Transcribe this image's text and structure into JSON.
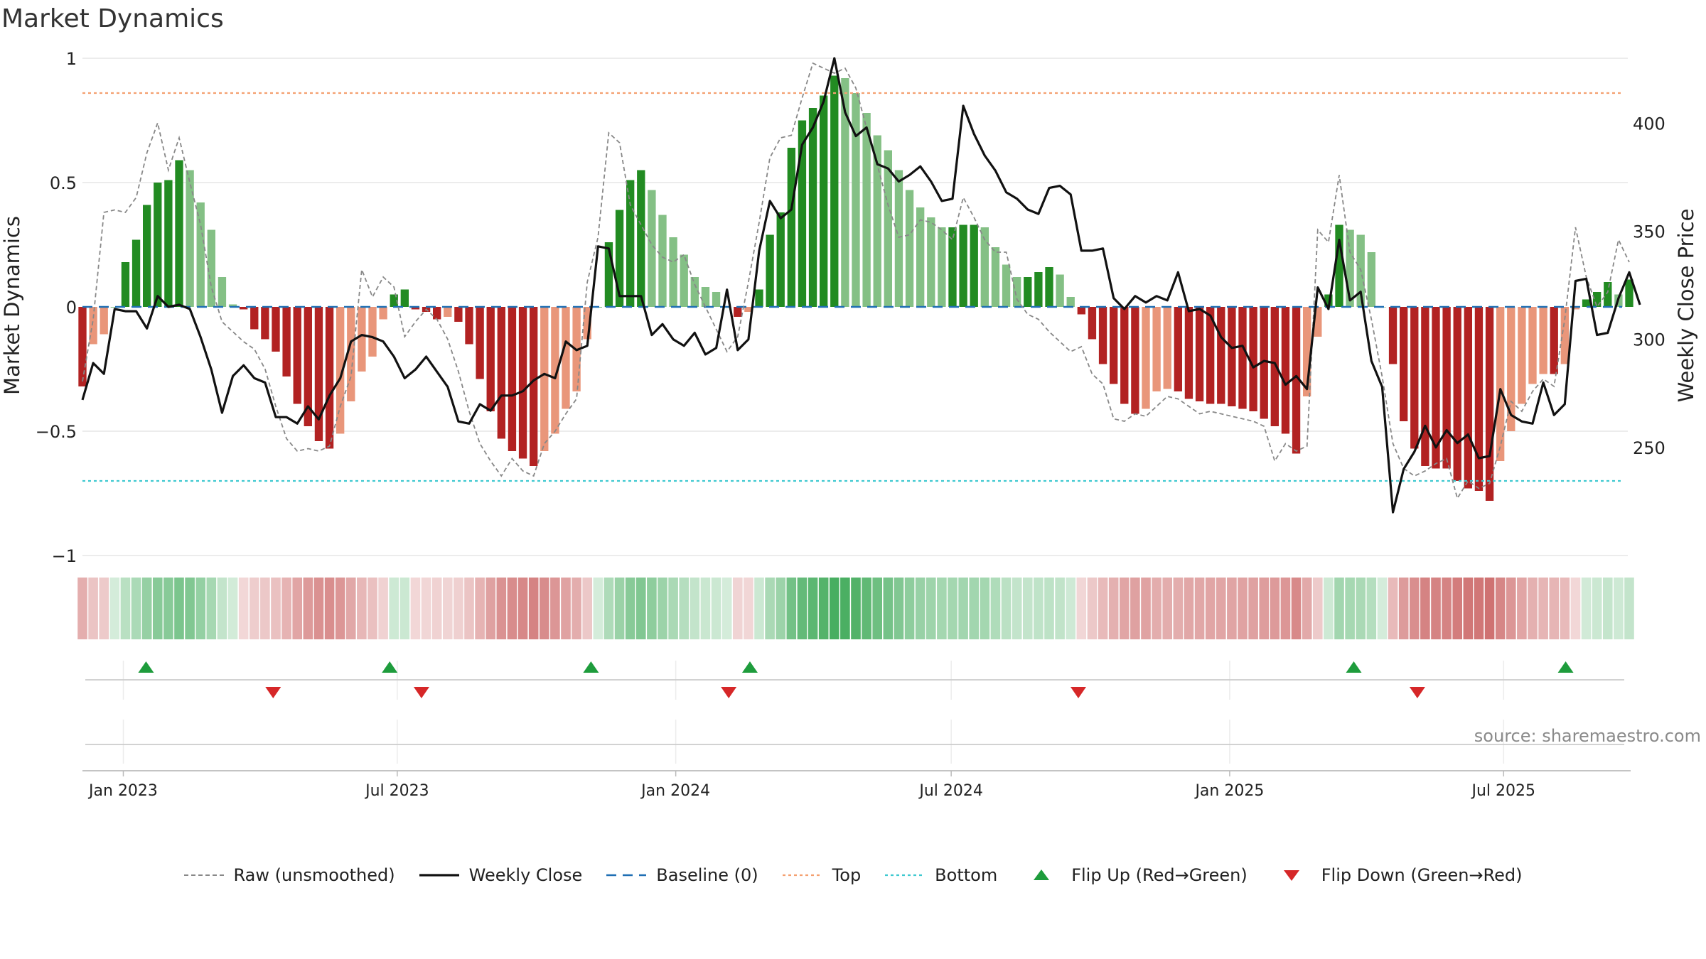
{
  "chart_data": {
    "type": "bar",
    "title": "Market Dynamics",
    "ylabel_left": "Market Dynamics",
    "ylabel_right": "Weekly Close Price",
    "ylim_left": [
      -1,
      1
    ],
    "ylim_right": [
      200,
      430
    ],
    "yticks_left": [
      1,
      0.5,
      0,
      -0.5,
      -1
    ],
    "yticks_left_labels": [
      "1",
      "0.5",
      "0",
      "−0.5",
      "−1"
    ],
    "yticks_right": [
      400,
      350,
      300,
      250
    ],
    "yticks_right_labels": [
      "400",
      "350",
      "300",
      "250"
    ],
    "x_start": "2022-12-05",
    "x_end": "2025-09-22",
    "xticks": [
      "2023-01-01",
      "2023-07-01",
      "2024-01-01",
      "2024-07-01",
      "2025-01-01",
      "2025-07-01"
    ],
    "xtick_labels": [
      "Jan 2023",
      "Jul 2023",
      "Jan 2024",
      "Jul 2024",
      "Jan 2025",
      "Jul 2025"
    ],
    "top_level": 0.86,
    "bottom_level": -0.7,
    "baseline": 0,
    "source": "source: sharemaestro.com",
    "colors": {
      "green_strong": "#228B22",
      "green_light": "#84C085",
      "red_strong": "#B22222",
      "red_light": "#E9967A",
      "top": "#F4A070",
      "bottom": "#3FC9D0",
      "baseline": "#1F6FB4",
      "close": "#111111",
      "raw": "#888888",
      "flip_up": "#1E9C3C",
      "flip_down": "#D62728"
    },
    "series": [
      {
        "name": "Market Dynamics",
        "values": [
          -0.32,
          -0.15,
          -0.11,
          0.0,
          0.18,
          0.27,
          0.41,
          0.5,
          0.51,
          0.59,
          0.55,
          0.42,
          0.31,
          0.12,
          0.01,
          -0.01,
          -0.09,
          -0.13,
          -0.18,
          -0.28,
          -0.39,
          -0.48,
          -0.54,
          -0.57,
          -0.51,
          -0.38,
          -0.26,
          -0.2,
          -0.05,
          0.05,
          0.07,
          -0.01,
          -0.02,
          -0.05,
          -0.04,
          -0.06,
          -0.15,
          -0.29,
          -0.42,
          -0.53,
          -0.58,
          -0.61,
          -0.64,
          -0.58,
          -0.51,
          -0.41,
          -0.34,
          -0.13,
          0.0,
          0.26,
          0.39,
          0.51,
          0.55,
          0.47,
          0.37,
          0.28,
          0.21,
          0.12,
          0.08,
          0.06,
          0.0,
          -0.04,
          -0.02,
          0.07,
          0.29,
          0.38,
          0.64,
          0.75,
          0.8,
          0.85,
          0.93,
          0.92,
          0.86,
          0.78,
          0.69,
          0.63,
          0.55,
          0.47,
          0.4,
          0.36,
          0.32,
          0.32,
          0.33,
          0.33,
          0.32,
          0.24,
          0.17,
          0.12,
          0.12,
          0.14,
          0.16,
          0.13,
          0.04,
          -0.03,
          -0.13,
          -0.23,
          -0.31,
          -0.39,
          -0.43,
          -0.41,
          -0.34,
          -0.33,
          -0.34,
          -0.37,
          -0.38,
          -0.39,
          -0.39,
          -0.4,
          -0.41,
          -0.42,
          -0.45,
          -0.48,
          -0.51,
          -0.59,
          -0.36,
          -0.12,
          0.05,
          0.33,
          0.31,
          0.29,
          0.22,
          0.0,
          -0.23,
          -0.46,
          -0.57,
          -0.64,
          -0.65,
          -0.65,
          -0.7,
          -0.73,
          -0.74,
          -0.78,
          -0.62,
          -0.5,
          -0.39,
          -0.31,
          -0.27,
          -0.27,
          -0.23,
          -0.01,
          0.03,
          0.06,
          0.1,
          0.05,
          0.11
        ]
      },
      {
        "name": "Raw (unsmoothed)",
        "values": [
          -0.3,
          -0.05,
          0.38,
          0.39,
          0.38,
          0.44,
          0.62,
          0.74,
          0.55,
          0.68,
          0.5,
          0.33,
          0.08,
          -0.06,
          -0.1,
          -0.14,
          -0.17,
          -0.25,
          -0.4,
          -0.53,
          -0.58,
          -0.57,
          -0.58,
          -0.56,
          -0.4,
          -0.28,
          0.15,
          0.04,
          0.12,
          0.08,
          -0.12,
          -0.06,
          -0.01,
          -0.05,
          -0.13,
          -0.26,
          -0.42,
          -0.55,
          -0.62,
          -0.68,
          -0.61,
          -0.66,
          -0.68,
          -0.55,
          -0.5,
          -0.43,
          -0.37,
          0.1,
          0.28,
          0.7,
          0.66,
          0.41,
          0.33,
          0.25,
          0.2,
          0.18,
          0.21,
          0.09,
          0.0,
          -0.09,
          -0.18,
          -0.12,
          0.1,
          0.34,
          0.6,
          0.68,
          0.69,
          0.84,
          0.98,
          0.96,
          0.94,
          0.96,
          0.88,
          0.72,
          0.57,
          0.41,
          0.28,
          0.29,
          0.35,
          0.34,
          0.31,
          0.27,
          0.44,
          0.36,
          0.27,
          0.22,
          0.22,
          0.03,
          -0.03,
          -0.05,
          -0.1,
          -0.14,
          -0.18,
          -0.16,
          -0.27,
          -0.31,
          -0.45,
          -0.46,
          -0.43,
          -0.44,
          -0.4,
          -0.36,
          -0.37,
          -0.4,
          -0.43,
          -0.42,
          -0.43,
          -0.44,
          -0.45,
          -0.46,
          -0.48,
          -0.62,
          -0.55,
          -0.58,
          -0.56,
          0.31,
          0.26,
          0.53,
          0.22,
          0.15,
          -0.05,
          -0.28,
          -0.55,
          -0.65,
          -0.68,
          -0.66,
          -0.63,
          -0.61,
          -0.77,
          -0.7,
          -0.73,
          -0.71,
          -0.56,
          -0.38,
          -0.42,
          -0.34,
          -0.29,
          -0.32,
          -0.05,
          0.32,
          0.12,
          0.0,
          0.06,
          0.27,
          0.18
        ]
      },
      {
        "name": "Weekly Close",
        "values": [
          272,
          289,
          284,
          314,
          313,
          313,
          305,
          320,
          315,
          316,
          314,
          301,
          286,
          266,
          283,
          288,
          282,
          280,
          264,
          264,
          261,
          269,
          263,
          274,
          282,
          299,
          302,
          301,
          299,
          292,
          282,
          286,
          292,
          285,
          278,
          262,
          261,
          270,
          267,
          274,
          274,
          276,
          281,
          284,
          282,
          299,
          295,
          297,
          343,
          342,
          320,
          320,
          320,
          302,
          307,
          300,
          297,
          303,
          293,
          296,
          323,
          295,
          300,
          341,
          364,
          356,
          360,
          390,
          398,
          410,
          430,
          405,
          394,
          398,
          381,
          379,
          373,
          376,
          380,
          373,
          364,
          365,
          408,
          395,
          385,
          378,
          368,
          365,
          360,
          358,
          370,
          371,
          367,
          341,
          341,
          342,
          319,
          314,
          320,
          317,
          320,
          318,
          331,
          313,
          314,
          311,
          301,
          296,
          297,
          287,
          290,
          289,
          279,
          283,
          277,
          324,
          314,
          346,
          318,
          322,
          290,
          278,
          220,
          240,
          248,
          260,
          250,
          258,
          252,
          256,
          245,
          246,
          277,
          265,
          262,
          261,
          280,
          265,
          270,
          327,
          328,
          302,
          303,
          319,
          331,
          316
        ]
      }
    ],
    "flips_up": [
      "2023-01-16",
      "2023-06-26",
      "2023-11-06",
      "2024-02-19",
      "2025-03-24",
      "2025-08-11"
    ],
    "flips_down": [
      "2023-04-10",
      "2023-07-17",
      "2024-02-05",
      "2024-09-23",
      "2025-05-05"
    ],
    "legend": [
      {
        "key": "raw",
        "label": "Raw (unsmoothed)",
        "style": "dashed-gray"
      },
      {
        "key": "close",
        "label": "Weekly Close",
        "style": "solid-black"
      },
      {
        "key": "baseline",
        "label": "Baseline (0)",
        "style": "dashed-blue"
      },
      {
        "key": "top",
        "label": "Top",
        "style": "dotted-orange"
      },
      {
        "key": "bottom",
        "label": "Bottom",
        "style": "dotted-cyan"
      },
      {
        "key": "flip_up",
        "label": "Flip Up (Red→Green)",
        "style": "triangle-up"
      },
      {
        "key": "flip_down",
        "label": "Flip Down (Green→Red)",
        "style": "triangle-down"
      }
    ]
  }
}
